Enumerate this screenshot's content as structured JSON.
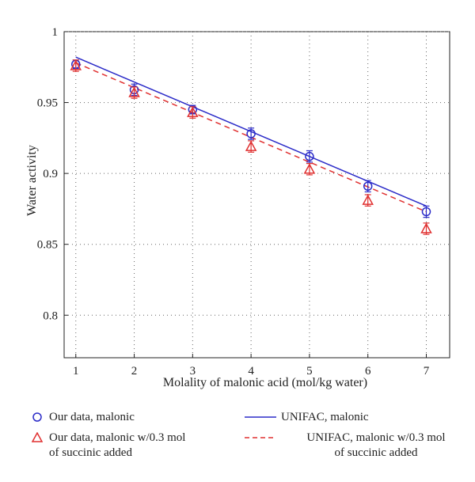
{
  "chart_data": {
    "type": "line",
    "xlabel": "Molality of malonic acid (mol/kg water)",
    "ylabel": "Water activity",
    "xlim": [
      0.8,
      7.4
    ],
    "ylim": [
      0.77,
      1.0
    ],
    "xticks": [
      1,
      2,
      3,
      4,
      5,
      6,
      7
    ],
    "yticks": [
      0.8,
      0.85,
      0.9,
      0.95,
      1.0
    ],
    "ytick_labels": [
      "0.8",
      "0.85",
      "0.9",
      "0.95",
      "1"
    ],
    "grid": true,
    "legend_position": "bottom",
    "series": [
      {
        "name": "Our data, malonic",
        "kind": "scatter",
        "marker": "circle",
        "color": "#2b2bc8",
        "x": [
          1,
          2,
          3,
          4,
          5,
          6,
          7
        ],
        "y": [
          0.977,
          0.959,
          0.945,
          0.928,
          0.912,
          0.891,
          0.873
        ],
        "err": [
          0.003,
          0.004,
          0.003,
          0.004,
          0.004,
          0.004,
          0.004
        ]
      },
      {
        "name": "Our data, malonic w/0.3 mol\nof succinic added",
        "kind": "scatter",
        "marker": "triangle",
        "color": "#e03030",
        "x": [
          1,
          2,
          3,
          4,
          5,
          6,
          7
        ],
        "y": [
          0.976,
          0.957,
          0.943,
          0.919,
          0.903,
          0.881,
          0.861
        ],
        "err": [
          0.004,
          0.004,
          0.004,
          0.004,
          0.004,
          0.004,
          0.004
        ]
      },
      {
        "name": "UNIFAC, malonic",
        "kind": "line",
        "dash": "solid",
        "color": "#2b2bc8",
        "x": [
          1,
          7
        ],
        "y": [
          0.982,
          0.877
        ]
      },
      {
        "name": "UNIFAC, malonic w/0.3 mol\nof succinic added",
        "kind": "line",
        "dash": "dashed",
        "color": "#e03030",
        "x": [
          1,
          7
        ],
        "y": [
          0.978,
          0.873
        ]
      }
    ]
  }
}
